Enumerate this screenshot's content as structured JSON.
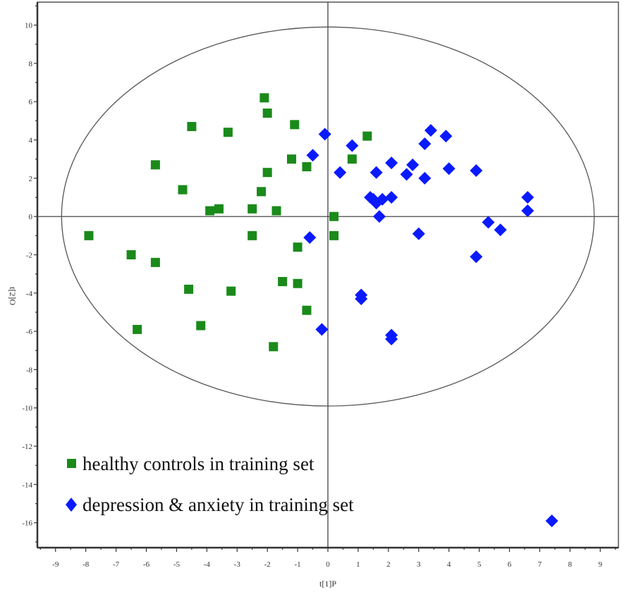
{
  "chart_data": {
    "type": "scatter",
    "title": "",
    "xlabel": "t[1]P",
    "ylabel": "t[2]O",
    "xlim": [
      -9.6,
      9.6
    ],
    "ylim": [
      -17.3,
      11.2
    ],
    "xticks": [
      -9,
      -8,
      -7,
      -6,
      -5,
      -4,
      -3,
      -2,
      -1,
      0,
      1,
      2,
      3,
      4,
      5,
      6,
      7,
      8,
      9
    ],
    "yticks": [
      10,
      8,
      6,
      4,
      2,
      0,
      -2,
      -4,
      -6,
      -8,
      -10,
      -12,
      -14,
      -16
    ],
    "ellipse": {
      "rx": 8.8,
      "ry": 9.9
    },
    "legend_position": "bottom-left",
    "series": [
      {
        "name": "healthy controls in training set",
        "marker": "square",
        "color": "#1a8a1a",
        "points": [
          [
            -7.9,
            -1.0
          ],
          [
            -6.5,
            -2.0
          ],
          [
            -6.3,
            -5.9
          ],
          [
            -5.7,
            2.7
          ],
          [
            -5.7,
            -2.4
          ],
          [
            -4.8,
            1.4
          ],
          [
            -4.5,
            4.7
          ],
          [
            -4.6,
            -3.8
          ],
          [
            -4.2,
            -5.7
          ],
          [
            -3.9,
            0.3
          ],
          [
            -3.6,
            0.4
          ],
          [
            -3.3,
            4.4
          ],
          [
            -3.2,
            -3.9
          ],
          [
            -2.5,
            0.4
          ],
          [
            -2.5,
            -1.0
          ],
          [
            -2.2,
            1.3
          ],
          [
            -2.1,
            6.2
          ],
          [
            -2.0,
            5.4
          ],
          [
            -2.0,
            2.3
          ],
          [
            -1.8,
            -6.8
          ],
          [
            -1.7,
            0.3
          ],
          [
            -1.5,
            -3.4
          ],
          [
            -1.2,
            3.0
          ],
          [
            -1.1,
            4.8
          ],
          [
            -1.0,
            -1.6
          ],
          [
            -1.0,
            -3.5
          ],
          [
            -0.7,
            2.6
          ],
          [
            -0.7,
            -4.9
          ],
          [
            0.2,
            0.0
          ],
          [
            0.2,
            -1.0
          ],
          [
            0.8,
            3.0
          ],
          [
            1.3,
            4.2
          ]
        ]
      },
      {
        "name": "depression & anxiety in training set",
        "marker": "diamond",
        "color": "#0a1aff",
        "points": [
          [
            -0.1,
            4.3
          ],
          [
            -0.5,
            3.2
          ],
          [
            -0.6,
            -1.1
          ],
          [
            -0.2,
            -5.9
          ],
          [
            0.4,
            2.3
          ],
          [
            0.8,
            3.7
          ],
          [
            1.1,
            -4.1
          ],
          [
            1.1,
            -4.3
          ],
          [
            1.4,
            1.0
          ],
          [
            1.5,
            0.9
          ],
          [
            1.6,
            2.3
          ],
          [
            1.6,
            0.7
          ],
          [
            1.7,
            0.0
          ],
          [
            1.8,
            0.9
          ],
          [
            2.1,
            2.8
          ],
          [
            2.1,
            1.0
          ],
          [
            2.1,
            -6.2
          ],
          [
            2.1,
            -6.4
          ],
          [
            2.6,
            2.2
          ],
          [
            2.8,
            2.7
          ],
          [
            3.0,
            -0.9
          ],
          [
            3.2,
            2.0
          ],
          [
            3.2,
            3.8
          ],
          [
            3.4,
            4.5
          ],
          [
            3.9,
            4.2
          ],
          [
            4.0,
            2.5
          ],
          [
            4.9,
            2.4
          ],
          [
            4.9,
            -2.1
          ],
          [
            5.3,
            -0.3
          ],
          [
            5.7,
            -0.7
          ],
          [
            6.6,
            1.0
          ],
          [
            6.6,
            0.3
          ],
          [
            7.4,
            -15.9
          ]
        ]
      }
    ]
  }
}
